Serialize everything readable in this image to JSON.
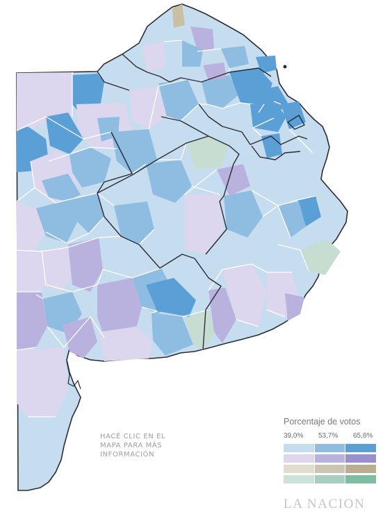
{
  "hint": {
    "line1": "HACÉ CLIC EN EL",
    "line2": "MAPA PARA MÁS",
    "line3": "INFORMACIÓN"
  },
  "legend": {
    "title": "Porcentaje de votos",
    "ticks": [
      "39,0%",
      "53,7%",
      "65,8%"
    ],
    "rows": [
      {
        "name": "blue",
        "colors": [
          "#c6dcef",
          "#8fbde2",
          "#5a9fd6"
        ]
      },
      {
        "name": "purple",
        "colors": [
          "#dcd7ee",
          "#b9b1de",
          "#9a8fcf"
        ]
      },
      {
        "name": "tan",
        "colors": [
          "#e0dcd0",
          "#cdc5b3",
          "#b9ae92"
        ]
      },
      {
        "name": "green",
        "colors": [
          "#cde3da",
          "#a6cfbe",
          "#7fbca2"
        ]
      }
    ]
  },
  "brand": "LA NACION",
  "map_colors": {
    "border": "#ffffff",
    "section_border": "#2b2b33",
    "light_blue": "#c6dcef",
    "mid_blue": "#8fbde2",
    "dark_blue": "#5a9fd6",
    "light_purple": "#dcd7ee",
    "mid_purple": "#b9b1de",
    "dark_purple": "#a398d4",
    "light_green": "#c8ddd2",
    "tan": "#c9bfa3"
  }
}
